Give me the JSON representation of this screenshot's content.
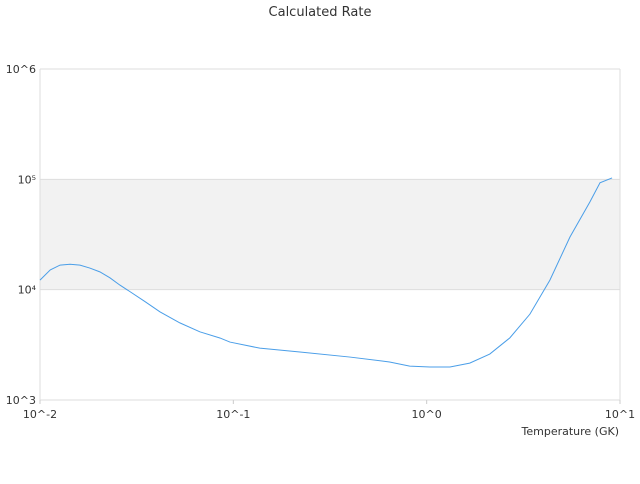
{
  "chart_data": {
    "type": "line",
    "title": "Calculated Rate",
    "x_label": "Temperature (GK)",
    "log_x": true,
    "log_y": true,
    "color": "#4a9ee8",
    "band_color": "#f2f2f2",
    "grid": true,
    "xlim": [
      0.01,
      10
    ],
    "ylim": [
      1000,
      1000000
    ],
    "xticks": [
      {
        "value": 0.01,
        "label": "10^-2"
      },
      {
        "value": 0.1,
        "label": "10^-1"
      },
      {
        "value": 1,
        "label": "10^0"
      },
      {
        "value": 10,
        "label": "10^1"
      }
    ],
    "yticks": [
      {
        "value": 1000,
        "label": "10^3"
      },
      {
        "value": 10000,
        "label": "10⁴"
      },
      {
        "value": 100000,
        "label": "10⁵"
      },
      {
        "value": 1000000,
        "label": "10^6"
      }
    ],
    "x": [
      0.01,
      0.0113,
      0.0127,
      0.0143,
      0.0161,
      0.0181,
      0.0204,
      0.023,
      0.0259,
      0.0292,
      0.0349,
      0.0417,
      0.0529,
      0.0671,
      0.0852,
      0.096,
      0.137,
      0.221,
      0.401,
      0.643,
      0.817,
      1.04,
      1.32,
      1.67,
      2.12,
      2.69,
      3.42,
      4.34,
      5.51,
      6.99,
      7.88,
      9.1
    ],
    "values": [
      12200,
      15100,
      16700,
      17000,
      16700,
      15700,
      14500,
      12800,
      11000,
      9600,
      7800,
      6300,
      5000,
      4150,
      3650,
      3350,
      2950,
      2720,
      2450,
      2210,
      2030,
      1990,
      1990,
      2160,
      2610,
      3650,
      6000,
      12200,
      30000,
      62500,
      93000,
      103000
    ]
  }
}
